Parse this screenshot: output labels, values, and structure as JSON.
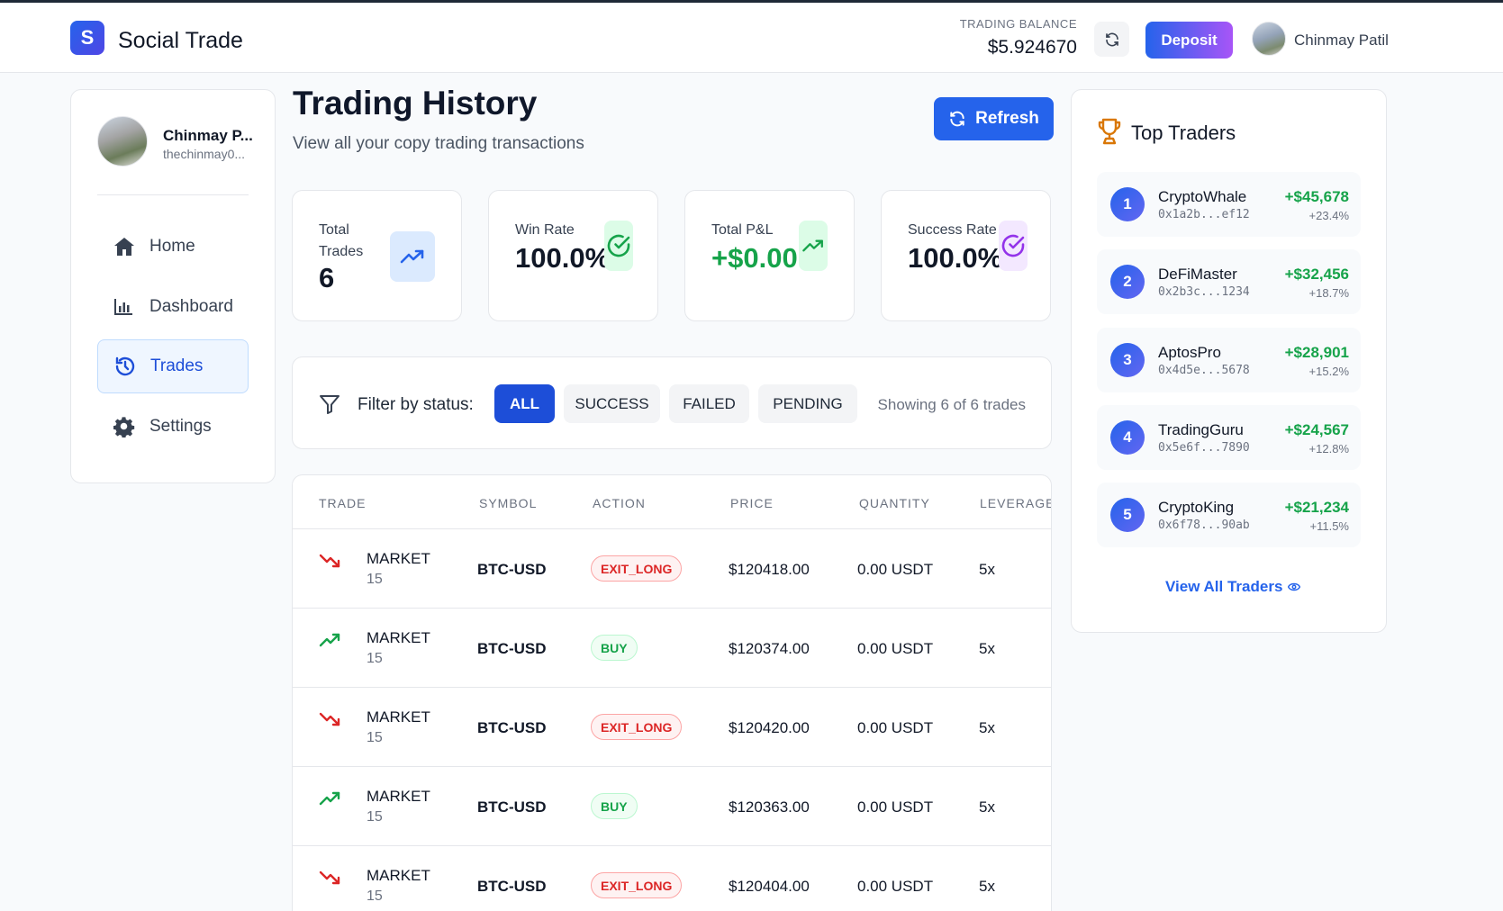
{
  "header": {
    "logo_letter": "S",
    "app_title": "Social Trade",
    "balance_label": "TRADING BALANCE",
    "balance_value": "$5.924670",
    "deposit_label": "Deposit",
    "user_name": "Chinmay Patil"
  },
  "sidebar": {
    "profile_name": "Chinmay P...",
    "profile_handle": "thechinmay0...",
    "items": [
      {
        "label": "Home",
        "icon": "home-icon"
      },
      {
        "label": "Dashboard",
        "icon": "bar-chart-icon"
      },
      {
        "label": "Trades",
        "icon": "history-icon",
        "active": true
      },
      {
        "label": "Settings",
        "icon": "gear-icon"
      }
    ]
  },
  "main": {
    "title": "Trading History",
    "subtitle": "View all your copy trading transactions",
    "refresh_label": "Refresh",
    "stats": [
      {
        "label": "Total Trades",
        "value": "6",
        "icon": "trending-up-icon",
        "color": "#2563eb"
      },
      {
        "label": "Win Rate",
        "value": "100.0%",
        "icon": "check-circle-icon",
        "color": "#16a34a"
      },
      {
        "label": "Total P&L",
        "value": "+$0.00",
        "icon": "trending-up-icon",
        "color": "#16a34a"
      },
      {
        "label": "Success Rate",
        "value": "100.0%",
        "icon": "check-circle-icon",
        "color": "#9333ea"
      }
    ],
    "filter": {
      "label": "Filter by status:",
      "options": [
        "ALL",
        "SUCCESS",
        "FAILED",
        "PENDING"
      ],
      "selected": "ALL",
      "showing_text": "Showing 6 of 6 trades"
    },
    "table": {
      "headers": [
        "TRADE",
        "SYMBOL",
        "ACTION",
        "PRICE",
        "QUANTITY",
        "LEVERAGE"
      ],
      "rows": [
        {
          "direction": "down",
          "type": "MARKET",
          "num": "15",
          "symbol": "BTC-USD",
          "action": "EXIT_LONG",
          "price": "$120418.00",
          "quantity": "0.00 USDT",
          "leverage": "5x"
        },
        {
          "direction": "up",
          "type": "MARKET",
          "num": "15",
          "symbol": "BTC-USD",
          "action": "BUY",
          "price": "$120374.00",
          "quantity": "0.00 USDT",
          "leverage": "5x"
        },
        {
          "direction": "down",
          "type": "MARKET",
          "num": "15",
          "symbol": "BTC-USD",
          "action": "EXIT_LONG",
          "price": "$120420.00",
          "quantity": "0.00 USDT",
          "leverage": "5x"
        },
        {
          "direction": "up",
          "type": "MARKET",
          "num": "15",
          "symbol": "BTC-USD",
          "action": "BUY",
          "price": "$120363.00",
          "quantity": "0.00 USDT",
          "leverage": "5x"
        },
        {
          "direction": "down",
          "type": "MARKET",
          "num": "15",
          "symbol": "BTC-USD",
          "action": "EXIT_LONG",
          "price": "$120404.00",
          "quantity": "0.00 USDT",
          "leverage": "5x"
        }
      ]
    }
  },
  "top_traders": {
    "title": "Top Traders",
    "view_all_label": "View All Traders",
    "traders": [
      {
        "rank": "1",
        "name": "CryptoWhale",
        "address": "0x1a2b...ef12",
        "pnl": "+$45,678",
        "pct": "+23.4%"
      },
      {
        "rank": "2",
        "name": "DeFiMaster",
        "address": "0x2b3c...1234",
        "pnl": "+$32,456",
        "pct": "+18.7%"
      },
      {
        "rank": "3",
        "name": "AptosPro",
        "address": "0x4d5e...5678",
        "pnl": "+$28,901",
        "pct": "+15.2%"
      },
      {
        "rank": "4",
        "name": "TradingGuru",
        "address": "0x5e6f...7890",
        "pnl": "+$24,567",
        "pct": "+12.8%"
      },
      {
        "rank": "5",
        "name": "CryptoKing",
        "address": "0x6f78...90ab",
        "pnl": "+$21,234",
        "pct": "+11.5%"
      }
    ]
  }
}
